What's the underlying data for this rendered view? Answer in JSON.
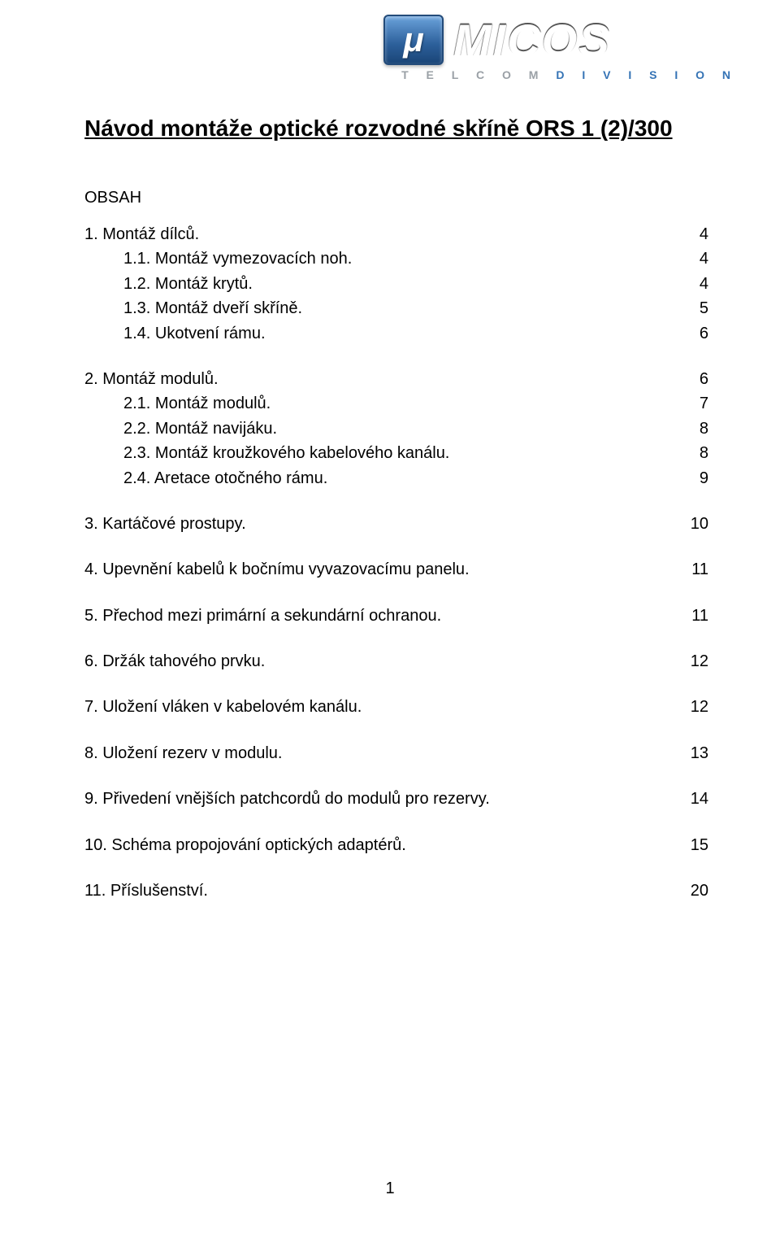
{
  "logo": {
    "mu": "μ",
    "word": "MICOS",
    "subline_pre": "T E L C O M   ",
    "subline_blue": "D I V I S I O N"
  },
  "title": "Návod montáže optické rozvodné skříně ORS 1 (2)/300",
  "obsah_label": "OBSAH",
  "toc": [
    {
      "type": "row",
      "label": "1. Montáž dílců.",
      "page": "4"
    },
    {
      "type": "sub",
      "label": "1.1. Montáž vymezovacích noh.",
      "page": "4"
    },
    {
      "type": "sub",
      "label": "1.2. Montáž krytů.",
      "page": "4"
    },
    {
      "type": "sub",
      "label": "1.3. Montáž dveří skříně.",
      "page": "5"
    },
    {
      "type": "sub",
      "label": "1.4. Ukotvení rámu.",
      "page": "6"
    },
    {
      "type": "gap-block"
    },
    {
      "type": "row",
      "label": "2. Montáž modulů.",
      "page": "6"
    },
    {
      "type": "sub",
      "label": "2.1. Montáž modulů.",
      "page": "7"
    },
    {
      "type": "sub",
      "label": "2.2. Montáž navijáku.",
      "page": "8"
    },
    {
      "type": "sub",
      "label": "2.3. Montáž kroužkového kabelového kanálu.",
      "page": "8"
    },
    {
      "type": "sub",
      "label": "2.4. Aretace otočného rámu.",
      "page": "9"
    },
    {
      "type": "gap-block"
    },
    {
      "type": "row",
      "label": "3. Kartáčové prostupy.",
      "page": "10"
    },
    {
      "type": "gap-block"
    },
    {
      "type": "row",
      "label": "4. Upevnění kabelů k bočnímu vyvazovacímu panelu.",
      "page": "11"
    },
    {
      "type": "gap-block"
    },
    {
      "type": "row",
      "label": "5. Přechod mezi primární a sekundární ochranou.",
      "page": "11"
    },
    {
      "type": "gap-block"
    },
    {
      "type": "row",
      "label": "6. Držák tahového prvku.",
      "page": "12"
    },
    {
      "type": "gap-block"
    },
    {
      "type": "row",
      "label": "7. Uložení vláken v kabelovém kanálu.",
      "page": "12"
    },
    {
      "type": "gap-block"
    },
    {
      "type": "row",
      "label": "8. Uložení rezerv v modulu.",
      "page": "13"
    },
    {
      "type": "gap-block"
    },
    {
      "type": "row",
      "label": "9. Přivedení vnějších patchcordů do modulů pro rezervy.",
      "page": "14"
    },
    {
      "type": "gap-block"
    },
    {
      "type": "row",
      "label": "10. Schéma propojování optických adaptérů.",
      "page": "15"
    },
    {
      "type": "gap-block"
    },
    {
      "type": "row",
      "label": "11. Příslušenství.",
      "page": "20"
    }
  ],
  "page_number": "1"
}
